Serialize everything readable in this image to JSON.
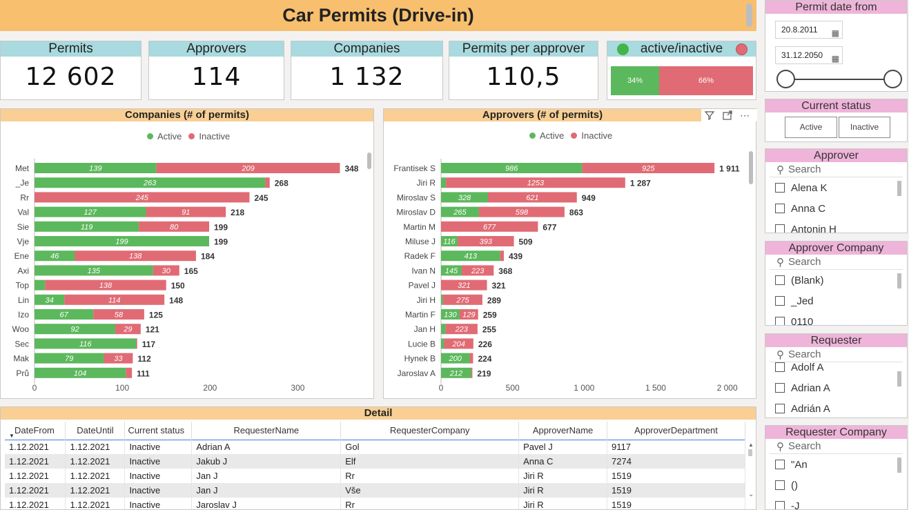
{
  "title": "Car Permits (Drive-in)",
  "kpis": [
    {
      "label": "Permits",
      "value": "12 602"
    },
    {
      "label": "Approvers",
      "value": "114"
    },
    {
      "label": "Companies",
      "value": "1 132"
    },
    {
      "label": "Permits per approver",
      "value": "110,5"
    }
  ],
  "active_inactive": {
    "label": "active/inactive",
    "active_pct": "34%",
    "inactive_pct": "66%",
    "active_share": 0.34
  },
  "colors": {
    "active": "#5cb85c",
    "inactive": "#e06b74",
    "header": "#f7bf6e",
    "kpi_header": "#a8dadf",
    "slicer_header": "#efb4d9"
  },
  "legend": {
    "active": "Active",
    "inactive": "Inactive"
  },
  "companies_chart": {
    "title": "Companies (# of permits)",
    "ticks": [
      "0",
      "100",
      "200",
      "300"
    ],
    "tick_values": [
      0,
      100,
      200,
      300
    ],
    "max": 350
  },
  "approvers_chart": {
    "title": "Approvers (# of permits)",
    "ticks": [
      "0",
      "500",
      "1 000",
      "1 500",
      "2 000"
    ],
    "tick_values": [
      0,
      500,
      1000,
      1500,
      2000
    ],
    "max": 2050
  },
  "chart_data": [
    {
      "type": "bar",
      "title": "Companies (# of permits)",
      "categories": [
        "Met",
        "_Je",
        "Rr",
        "Val",
        "Sie",
        "Vje",
        "Ene",
        "Axi",
        "Top",
        "Lin",
        "Izo",
        "Woo",
        "Sec",
        "Mak",
        "Prů"
      ],
      "series": [
        {
          "name": "Active",
          "values": [
            139,
            263,
            0,
            127,
            119,
            199,
            46,
            135,
            12,
            34,
            67,
            92,
            116,
            79,
            104
          ]
        },
        {
          "name": "Inactive",
          "values": [
            209,
            5,
            245,
            91,
            80,
            0,
            138,
            30,
            138,
            114,
            58,
            29,
            1,
            33,
            7
          ]
        }
      ],
      "totals": [
        "348",
        "268",
        "245",
        "218",
        "199",
        "199",
        "184",
        "165",
        "150",
        "148",
        "125",
        "121",
        "117",
        "112",
        "111"
      ],
      "active_labels": [
        "139",
        "263",
        "",
        "127",
        "119",
        "199",
        "46",
        "135",
        "",
        "34",
        "67",
        "92",
        "116",
        "79",
        "104"
      ],
      "inactive_labels": [
        "209",
        "",
        "245",
        "91",
        "80",
        "",
        "138",
        "30",
        "138",
        "114",
        "58",
        "29",
        "",
        "33",
        ""
      ]
    },
    {
      "type": "bar",
      "title": "Approvers (# of permits)",
      "categories": [
        "Frantisek S",
        "Jiri R",
        "Miroslav S",
        "Miroslav D",
        "Martin M",
        "Miluse J",
        "Radek F",
        "Ivan N",
        "Pavel J",
        "Jiri H",
        "Martin F",
        "Jan H",
        "Lucie B",
        "Hynek B",
        "Jaroslav A"
      ],
      "series": [
        {
          "name": "Active",
          "values": [
            986,
            34,
            328,
            265,
            0,
            116,
            413,
            145,
            0,
            14,
            130,
            32,
            22,
            200,
            212
          ]
        },
        {
          "name": "Inactive",
          "values": [
            925,
            1253,
            621,
            598,
            677,
            393,
            26,
            223,
            321,
            275,
            129,
            223,
            204,
            24,
            7
          ]
        }
      ],
      "totals": [
        "1 911",
        "1 287",
        "949",
        "863",
        "677",
        "509",
        "439",
        "368",
        "321",
        "289",
        "259",
        "255",
        "226",
        "224",
        "219"
      ],
      "active_labels": [
        "986",
        "",
        "328",
        "265",
        "",
        "116",
        "413",
        "145",
        "",
        "",
        "130",
        "",
        "",
        "200",
        "212"
      ],
      "inactive_labels": [
        "925",
        "1253",
        "621",
        "598",
        "677",
        "393",
        "",
        "223",
        "321",
        "275",
        "129",
        "223",
        "204",
        "",
        ""
      ]
    }
  ],
  "detail": {
    "title": "Detail",
    "columns": [
      "DateFrom",
      "DateUntil",
      "Current status",
      "RequesterName",
      "RequesterCompany",
      "ApproverName",
      "ApproverDepartment"
    ],
    "rows": [
      [
        "1.12.2021",
        "1.12.2021",
        "Inactive",
        "Adrian A",
        "Gol",
        "Pavel J",
        "9117"
      ],
      [
        "1.12.2021",
        "1.12.2021",
        "Inactive",
        "Jakub J",
        "Elf",
        "Anna C",
        "7274"
      ],
      [
        "1.12.2021",
        "1.12.2021",
        "Inactive",
        "Jan J",
        "Rr",
        "Jiri R",
        "1519"
      ],
      [
        "1.12.2021",
        "1.12.2021",
        "Inactive",
        "Jan J",
        "Vše",
        "Jiri R",
        "1519"
      ],
      [
        "1.12.2021",
        "1.12.2021",
        "Inactive",
        "Jaroslav J",
        "Rr",
        "Jiri R",
        "1519"
      ]
    ]
  },
  "slicers": {
    "date": {
      "title": "Permit date from",
      "from": "20.8.2011",
      "to": "31.12.2050"
    },
    "status": {
      "title": "Current status",
      "active": "Active",
      "inactive": "Inactive"
    },
    "approver": {
      "title": "Approver",
      "search": "Search",
      "items": [
        "Alena K",
        "Anna C",
        "Antonin H"
      ]
    },
    "approver_company": {
      "title": "Approver Company",
      "search": "Search",
      "items": [
        "(Blank)",
        "_Jed",
        "0110"
      ]
    },
    "requester": {
      "title": "Requester",
      "search": "Search",
      "items": [
        "Adolf A",
        "Adrian A",
        "Adrián A"
      ]
    },
    "requester_company": {
      "title": "Requester Company",
      "search": "Search",
      "items": [
        "\"An",
        "()",
        "-J"
      ]
    }
  }
}
